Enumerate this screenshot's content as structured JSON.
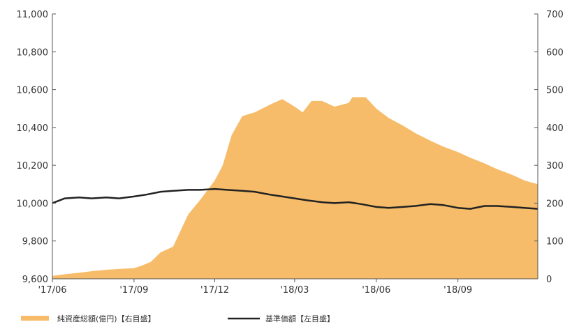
{
  "chart_data": {
    "type": "area",
    "title": "",
    "x_ticks": [
      "'17/06",
      "'17/09",
      "'17/12",
      "'18/03",
      "'18/06",
      "'18/09"
    ],
    "left_axis": {
      "ticks": [
        "11,000",
        "10,800",
        "10,600",
        "10,400",
        "10,200",
        "10,000",
        "9,800",
        "9,600"
      ],
      "ylim": [
        9600,
        11000
      ]
    },
    "right_axis": {
      "ticks": [
        "700",
        "600",
        "500",
        "400",
        "300",
        "200",
        "100",
        "0"
      ],
      "ylim": [
        0,
        700
      ]
    },
    "grid": false,
    "legend_position": "bottom-left",
    "series": [
      {
        "name": "純資産総額(億円)【右目盛】",
        "type": "area",
        "axis": "right",
        "color": "#f6bc6a",
        "points": [
          [
            "2017-06-01",
            8
          ],
          [
            "2017-06-15",
            12
          ],
          [
            "2017-07-01",
            16
          ],
          [
            "2017-07-15",
            20
          ],
          [
            "2017-08-01",
            24
          ],
          [
            "2017-08-15",
            26
          ],
          [
            "2017-09-01",
            28
          ],
          [
            "2017-09-10",
            35
          ],
          [
            "2017-09-20",
            45
          ],
          [
            "2017-10-01",
            70
          ],
          [
            "2017-10-15",
            85
          ],
          [
            "2017-11-01",
            170
          ],
          [
            "2017-11-15",
            210
          ],
          [
            "2017-12-01",
            260
          ],
          [
            "2017-12-10",
            300
          ],
          [
            "2017-12-20",
            380
          ],
          [
            "2018-01-01",
            430
          ],
          [
            "2018-01-15",
            440
          ],
          [
            "2018-02-01",
            460
          ],
          [
            "2018-02-15",
            475
          ],
          [
            "2018-03-01",
            455
          ],
          [
            "2018-03-10",
            440
          ],
          [
            "2018-03-15",
            455
          ],
          [
            "2018-03-20",
            470
          ],
          [
            "2018-04-01",
            470
          ],
          [
            "2018-04-15",
            455
          ],
          [
            "2018-05-01",
            465
          ],
          [
            "2018-05-05",
            480
          ],
          [
            "2018-05-20",
            480
          ],
          [
            "2018-06-01",
            450
          ],
          [
            "2018-06-15",
            425
          ],
          [
            "2018-07-01",
            405
          ],
          [
            "2018-07-15",
            385
          ],
          [
            "2018-08-01",
            365
          ],
          [
            "2018-08-15",
            350
          ],
          [
            "2018-09-01",
            335
          ],
          [
            "2018-09-15",
            320
          ],
          [
            "2018-10-01",
            305
          ],
          [
            "2018-10-15",
            290
          ],
          [
            "2018-11-01",
            275
          ],
          [
            "2018-11-15",
            260
          ],
          [
            "2018-11-30",
            250
          ]
        ]
      },
      {
        "name": "基準価額【左目盛】",
        "type": "line",
        "axis": "left",
        "color": "#222222",
        "points": [
          [
            "2017-06-01",
            10000
          ],
          [
            "2017-06-15",
            10025
          ],
          [
            "2017-07-01",
            10030
          ],
          [
            "2017-07-15",
            10025
          ],
          [
            "2017-08-01",
            10030
          ],
          [
            "2017-08-15",
            10025
          ],
          [
            "2017-09-01",
            10035
          ],
          [
            "2017-09-15",
            10045
          ],
          [
            "2017-10-01",
            10060
          ],
          [
            "2017-10-15",
            10065
          ],
          [
            "2017-11-01",
            10070
          ],
          [
            "2017-11-15",
            10070
          ],
          [
            "2017-12-01",
            10075
          ],
          [
            "2017-12-15",
            10070
          ],
          [
            "2018-01-01",
            10065
          ],
          [
            "2018-01-15",
            10060
          ],
          [
            "2018-02-01",
            10045
          ],
          [
            "2018-02-15",
            10035
          ],
          [
            "2018-03-01",
            10025
          ],
          [
            "2018-03-15",
            10015
          ],
          [
            "2018-04-01",
            10005
          ],
          [
            "2018-04-15",
            10000
          ],
          [
            "2018-05-01",
            10005
          ],
          [
            "2018-05-15",
            9995
          ],
          [
            "2018-06-01",
            9980
          ],
          [
            "2018-06-15",
            9975
          ],
          [
            "2018-07-01",
            9980
          ],
          [
            "2018-07-15",
            9985
          ],
          [
            "2018-08-01",
            9995
          ],
          [
            "2018-08-15",
            9990
          ],
          [
            "2018-09-01",
            9975
          ],
          [
            "2018-09-15",
            9970
          ],
          [
            "2018-10-01",
            9985
          ],
          [
            "2018-10-15",
            9985
          ],
          [
            "2018-11-01",
            9980
          ],
          [
            "2018-11-15",
            9975
          ],
          [
            "2018-11-30",
            9970
          ]
        ]
      }
    ]
  }
}
